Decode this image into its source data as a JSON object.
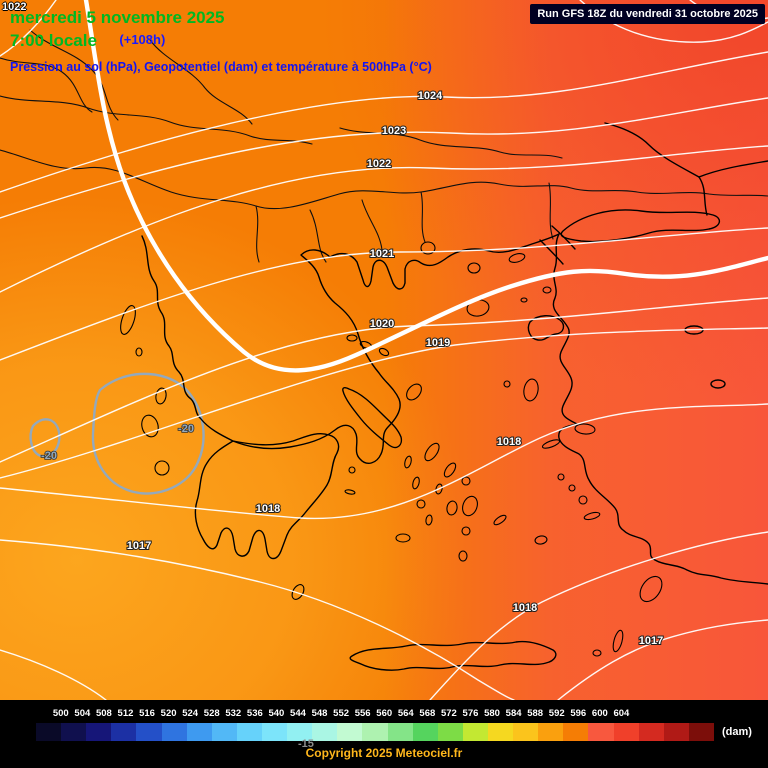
{
  "header": {
    "date_line": "mercredi 5 novembre 2025",
    "time_line": "7:00 locale",
    "forecast_offset": "(+108h)",
    "subtitle": "Pression au sol (hPa), Geopotentiel (dam) et température à 500hPa (°C)",
    "run_info": "Run GFS 18Z du vendredi 31 octobre 2025",
    "colors": {
      "date_green": "#00b822",
      "offset_blue": "#1a1aff",
      "subtitle_blue": "#1414f0"
    }
  },
  "map": {
    "corner_label": "1022",
    "isobar_labels": [
      {
        "text": "1024"
      },
      {
        "text": "1023"
      },
      {
        "text": "1022"
      },
      {
        "text": "1021"
      },
      {
        "text": "1020"
      },
      {
        "text": "1019"
      },
      {
        "text": "1018"
      },
      {
        "text": "1018"
      },
      {
        "text": "1017"
      },
      {
        "text": "1018"
      },
      {
        "text": "1017"
      }
    ],
    "temp_labels": [
      {
        "text": "-20"
      },
      {
        "text": "-20"
      }
    ],
    "stray_label": "-15",
    "palette": {
      "base_orange": "#f57d05",
      "light_orange": "#fda81f",
      "red_east": "#f8583c",
      "red_corner": "#f04428",
      "temp_contour_gray": "#93a9bd"
    }
  },
  "legend": {
    "values": [
      "500",
      "504",
      "508",
      "512",
      "516",
      "520",
      "524",
      "528",
      "532",
      "536",
      "540",
      "544",
      "548",
      "552",
      "556",
      "560",
      "564",
      "568",
      "572",
      "576",
      "580",
      "584",
      "588",
      "592",
      "596",
      "600",
      "604"
    ],
    "colors": [
      "#0a0a28",
      "#10104e",
      "#161678",
      "#1c30a4",
      "#2450c8",
      "#2f74e0",
      "#3e9af0",
      "#52b8f6",
      "#66d2fa",
      "#7ce4fa",
      "#92f0f2",
      "#aaf6e4",
      "#c2fad2",
      "#aef2b0",
      "#84e488",
      "#55d45e",
      "#7ddc46",
      "#c3e832",
      "#f5d820",
      "#fbc41c",
      "#faa00e",
      "#f57d05",
      "#f8583e",
      "#f0402a",
      "#d42a20",
      "#b01a16",
      "#7c0e0a"
    ],
    "unit": "(dam)"
  },
  "footer": {
    "copyright": "Copyright 2025 Meteociel.fr"
  }
}
